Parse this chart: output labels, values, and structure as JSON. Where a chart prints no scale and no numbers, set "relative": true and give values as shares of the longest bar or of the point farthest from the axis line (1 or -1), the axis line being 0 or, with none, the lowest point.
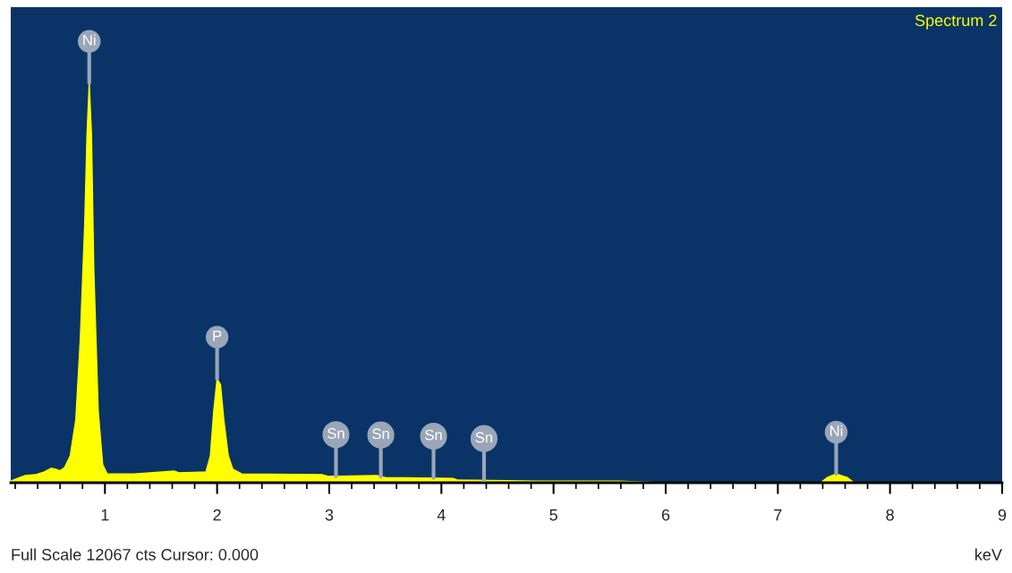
{
  "chart_data": {
    "type": "area",
    "title": "Spectrum 2",
    "xlabel": "keV",
    "relative": true,
    "grid": false,
    "xlim": [
      0.16,
      9
    ],
    "xticks": [
      {
        "value": 0.2,
        "label": null
      },
      {
        "value": 0.4,
        "label": null
      },
      {
        "value": 0.6,
        "label": null
      },
      {
        "value": 0.8,
        "label": null
      },
      1,
      {
        "value": 1.2,
        "label": null
      },
      {
        "value": 1.4,
        "label": null
      },
      {
        "value": 1.6,
        "label": null
      },
      {
        "value": 1.8,
        "label": null
      },
      2,
      {
        "value": 2.2,
        "label": null
      },
      {
        "value": 2.4,
        "label": null
      },
      {
        "value": 2.6,
        "label": null
      },
      {
        "value": 2.8,
        "label": null
      },
      3,
      {
        "value": 3.2,
        "label": null
      },
      {
        "value": 3.4,
        "label": null
      },
      {
        "value": 3.6,
        "label": null
      },
      {
        "value": 3.8,
        "label": null
      },
      4,
      {
        "value": 4.2,
        "label": null
      },
      {
        "value": 4.4,
        "label": null
      },
      {
        "value": 4.6,
        "label": null
      },
      {
        "value": 4.8,
        "label": null
      },
      5,
      {
        "value": 5.2,
        "label": null
      },
      {
        "value": 5.4,
        "label": null
      },
      {
        "value": 5.6,
        "label": null
      },
      {
        "value": 5.8,
        "label": null
      },
      6,
      {
        "value": 6.2,
        "label": null
      },
      {
        "value": 6.4,
        "label": null
      },
      {
        "value": 6.6,
        "label": null
      },
      {
        "value": 6.8,
        "label": null
      },
      7,
      {
        "value": 7.2,
        "label": null
      },
      {
        "value": 7.4,
        "label": null
      },
      {
        "value": 7.6,
        "label": null
      },
      {
        "value": 7.8,
        "label": null
      },
      8,
      {
        "value": 8.2,
        "label": null
      },
      {
        "value": 8.4,
        "label": null
      },
      {
        "value": 8.6,
        "label": null
      },
      {
        "value": 8.8,
        "label": null
      },
      9
    ],
    "series": [
      {
        "color": "#ffff00",
        "x": [
          0.16,
          0.22,
          0.29,
          0.38,
          0.46,
          0.52,
          0.56,
          0.6,
          0.64,
          0.69,
          0.74,
          0.78,
          0.82,
          0.84,
          0.86,
          0.88,
          0.9,
          0.94,
          0.98,
          1.02,
          1.26,
          1.62,
          1.66,
          1.9,
          1.94,
          1.97,
          2.0,
          2.03,
          2.06,
          2.1,
          2.14,
          2.22,
          2.94,
          2.99,
          3.42,
          3.5,
          4.1,
          4.14,
          4.86,
          5.58,
          5.98,
          7.38,
          7.44,
          7.52,
          7.62,
          7.68,
          9
        ],
        "values": [
          0.004,
          0.011,
          0.018,
          0.02,
          0.027,
          0.036,
          0.034,
          0.03,
          0.038,
          0.067,
          0.157,
          0.358,
          0.65,
          0.87,
          1,
          0.87,
          0.54,
          0.18,
          0.045,
          0.022,
          0.022,
          0.029,
          0.025,
          0.027,
          0.067,
          0.179,
          0.26,
          0.246,
          0.157,
          0.067,
          0.034,
          0.022,
          0.02,
          0.016,
          0.018,
          0.013,
          0.011,
          0.007,
          0.004,
          0.004,
          0,
          0,
          0.013,
          0.022,
          0.013,
          0,
          0
        ]
      }
    ],
    "annotations": [
      {
        "text": "Ni",
        "x": 0.86,
        "y": 1
      },
      {
        "text": "P",
        "x": 2.0,
        "y": 0.26
      },
      {
        "text": "Sn",
        "x": 3.06,
        "y": 0.016
      },
      {
        "text": "Sn",
        "x": 3.46,
        "y": 0.015
      },
      {
        "text": "Sn",
        "x": 3.93,
        "y": 0.012
      },
      {
        "text": "Sn",
        "x": 4.38,
        "y": 0.006
      },
      {
        "text": "Ni",
        "x": 7.52,
        "y": 0.022
      },
      "Full Scale 12067 cts Cursor: 0.000"
    ]
  }
}
